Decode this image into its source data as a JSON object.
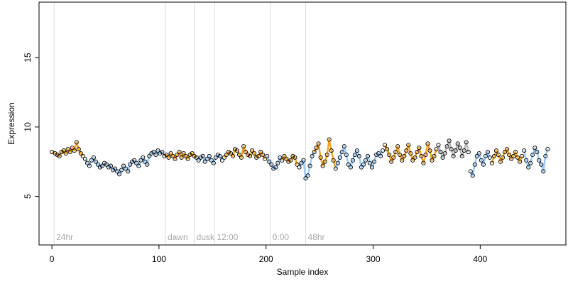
{
  "chart_data": {
    "type": "scatter",
    "xlabel": "Sample index",
    "ylabel": "Expression",
    "xlim": [
      -12,
      480
    ],
    "ylim": [
      1.5,
      19
    ],
    "xticks": [
      0,
      100,
      200,
      300,
      400
    ],
    "yticks": [
      5,
      10,
      15
    ],
    "colors": {
      "dark": "#000000",
      "orange": "#f5a623",
      "blue": "#9ecbf5",
      "gray": "#b8b8b8",
      "grid": "#dcdcdc"
    },
    "markers": [
      {
        "x": 2,
        "label": "24hr"
      },
      {
        "x": 106,
        "label": "dawn"
      },
      {
        "x": 133,
        "label": "dusk"
      },
      {
        "x": 152,
        "label": "12:00"
      },
      {
        "x": 204,
        "label": "0:00"
      },
      {
        "x": 237,
        "label": "48hr"
      }
    ],
    "segments": [
      {
        "x0": 0,
        "x1": 30,
        "color": "orange"
      },
      {
        "x0": 30,
        "x1": 105,
        "color": "blue"
      },
      {
        "x0": 105,
        "x1": 135,
        "color": "orange"
      },
      {
        "x0": 135,
        "x1": 160,
        "color": "blue"
      },
      {
        "x0": 160,
        "x1": 200,
        "color": "orange"
      },
      {
        "x0": 200,
        "x1": 215,
        "color": "blue"
      },
      {
        "x0": 215,
        "x1": 230,
        "color": "orange"
      },
      {
        "x0": 230,
        "x1": 245,
        "color": "blue"
      },
      {
        "x0": 245,
        "x1": 265,
        "color": "orange"
      },
      {
        "x0": 265,
        "x1": 310,
        "color": "blue"
      },
      {
        "x0": 310,
        "x1": 360,
        "color": "orange"
      },
      {
        "x0": 360,
        "x1": 390,
        "color": "gray"
      },
      {
        "x0": 390,
        "x1": 410,
        "color": "blue"
      },
      {
        "x0": 410,
        "x1": 440,
        "color": "orange"
      },
      {
        "x0": 440,
        "x1": 465,
        "color": "blue"
      }
    ],
    "points": [
      [
        0,
        8.2
      ],
      [
        3,
        8.1
      ],
      [
        5,
        8.0
      ],
      [
        7,
        7.9
      ],
      [
        9,
        8.2
      ],
      [
        11,
        8.3
      ],
      [
        13,
        8.1
      ],
      [
        15,
        8.4
      ],
      [
        17,
        8.2
      ],
      [
        19,
        8.5
      ],
      [
        21,
        8.3
      ],
      [
        23,
        8.9
      ],
      [
        25,
        8.4
      ],
      [
        27,
        8.1
      ],
      [
        29,
        7.9
      ],
      [
        31,
        7.7
      ],
      [
        33,
        7.4
      ],
      [
        35,
        7.2
      ],
      [
        37,
        7.6
      ],
      [
        39,
        7.8
      ],
      [
        41,
        7.5
      ],
      [
        43,
        7.3
      ],
      [
        45,
        7.1
      ],
      [
        47,
        7.2
      ],
      [
        49,
        7.4
      ],
      [
        51,
        7.3
      ],
      [
        53,
        7.1
      ],
      [
        55,
        7.2
      ],
      [
        57,
        6.9
      ],
      [
        59,
        7.0
      ],
      [
        61,
        6.8
      ],
      [
        63,
        6.6
      ],
      [
        65,
        6.9
      ],
      [
        67,
        7.2
      ],
      [
        69,
        7.0
      ],
      [
        71,
        6.8
      ],
      [
        73,
        7.3
      ],
      [
        75,
        7.5
      ],
      [
        77,
        7.6
      ],
      [
        79,
        7.4
      ],
      [
        81,
        7.2
      ],
      [
        83,
        7.6
      ],
      [
        85,
        7.8
      ],
      [
        87,
        7.5
      ],
      [
        89,
        7.3
      ],
      [
        91,
        7.9
      ],
      [
        93,
        8.1
      ],
      [
        95,
        8.2
      ],
      [
        97,
        8.0
      ],
      [
        99,
        8.3
      ],
      [
        101,
        8.1
      ],
      [
        103,
        8.2
      ],
      [
        105,
        7.9
      ],
      [
        107,
        8.0
      ],
      [
        109,
        7.8
      ],
      [
        111,
        8.1
      ],
      [
        113,
        7.9
      ],
      [
        115,
        7.7
      ],
      [
        117,
        8.0
      ],
      [
        119,
        8.2
      ],
      [
        121,
        7.8
      ],
      [
        123,
        8.1
      ],
      [
        125,
        7.9
      ],
      [
        127,
        7.7
      ],
      [
        129,
        8.0
      ],
      [
        131,
        8.1
      ],
      [
        133,
        7.9
      ],
      [
        135,
        7.8
      ],
      [
        137,
        7.6
      ],
      [
        139,
        7.8
      ],
      [
        141,
        7.9
      ],
      [
        143,
        7.5
      ],
      [
        145,
        7.7
      ],
      [
        147,
        7.9
      ],
      [
        149,
        7.6
      ],
      [
        151,
        7.4
      ],
      [
        153,
        7.8
      ],
      [
        155,
        8.0
      ],
      [
        157,
        7.9
      ],
      [
        159,
        7.6
      ],
      [
        161,
        7.8
      ],
      [
        163,
        8.0
      ],
      [
        165,
        8.2
      ],
      [
        167,
        8.1
      ],
      [
        169,
        7.9
      ],
      [
        171,
        8.4
      ],
      [
        173,
        8.3
      ],
      [
        175,
        8.0
      ],
      [
        177,
        7.8
      ],
      [
        179,
        8.6
      ],
      [
        181,
        8.2
      ],
      [
        183,
        8.0
      ],
      [
        185,
        7.9
      ],
      [
        187,
        8.3
      ],
      [
        189,
        8.1
      ],
      [
        191,
        7.8
      ],
      [
        193,
        7.9
      ],
      [
        195,
        8.2
      ],
      [
        197,
        8.0
      ],
      [
        199,
        7.7
      ],
      [
        201,
        7.9
      ],
      [
        203,
        7.5
      ],
      [
        205,
        7.3
      ],
      [
        207,
        7.0
      ],
      [
        209,
        7.1
      ],
      [
        211,
        7.4
      ],
      [
        213,
        7.8
      ],
      [
        215,
        7.6
      ],
      [
        217,
        7.9
      ],
      [
        219,
        7.7
      ],
      [
        221,
        7.5
      ],
      [
        223,
        7.6
      ],
      [
        225,
        7.9
      ],
      [
        227,
        7.8
      ],
      [
        229,
        7.3
      ],
      [
        231,
        7.1
      ],
      [
        233,
        7.4
      ],
      [
        235,
        7.6
      ],
      [
        237,
        6.3
      ],
      [
        239,
        6.5
      ],
      [
        241,
        7.2
      ],
      [
        243,
        7.9
      ],
      [
        245,
        8.2
      ],
      [
        247,
        8.5
      ],
      [
        249,
        8.8
      ],
      [
        251,
        7.8
      ],
      [
        253,
        7.2
      ],
      [
        255,
        7.5
      ],
      [
        257,
        8.0
      ],
      [
        259,
        9.1
      ],
      [
        261,
        8.3
      ],
      [
        263,
        7.6
      ],
      [
        265,
        7.0
      ],
      [
        267,
        7.4
      ],
      [
        269,
        7.8
      ],
      [
        271,
        8.2
      ],
      [
        273,
        8.6
      ],
      [
        275,
        8.0
      ],
      [
        277,
        7.3
      ],
      [
        279,
        7.1
      ],
      [
        281,
        7.6
      ],
      [
        283,
        8.0
      ],
      [
        285,
        8.3
      ],
      [
        287,
        7.9
      ],
      [
        289,
        7.1
      ],
      [
        291,
        7.3
      ],
      [
        293,
        7.6
      ],
      [
        295,
        7.9
      ],
      [
        297,
        7.4
      ],
      [
        299,
        7.1
      ],
      [
        301,
        7.5
      ],
      [
        303,
        8.0
      ],
      [
        305,
        8.1
      ],
      [
        307,
        7.9
      ],
      [
        309,
        8.3
      ],
      [
        311,
        8.7
      ],
      [
        313,
        8.4
      ],
      [
        315,
        8.0
      ],
      [
        317,
        7.5
      ],
      [
        319,
        7.8
      ],
      [
        321,
        8.2
      ],
      [
        323,
        8.6
      ],
      [
        325,
        8.0
      ],
      [
        327,
        7.6
      ],
      [
        329,
        7.9
      ],
      [
        331,
        8.3
      ],
      [
        333,
        8.7
      ],
      [
        335,
        8.1
      ],
      [
        337,
        7.6
      ],
      [
        339,
        7.8
      ],
      [
        341,
        8.2
      ],
      [
        343,
        8.5
      ],
      [
        345,
        7.9
      ],
      [
        347,
        7.4
      ],
      [
        349,
        8.0
      ],
      [
        351,
        8.8
      ],
      [
        353,
        8.3
      ],
      [
        355,
        7.6
      ],
      [
        357,
        7.9
      ],
      [
        359,
        8.4
      ],
      [
        361,
        8.7
      ],
      [
        363,
        8.2
      ],
      [
        365,
        7.8
      ],
      [
        367,
        8.1
      ],
      [
        369,
        8.6
      ],
      [
        371,
        9.0
      ],
      [
        373,
        8.4
      ],
      [
        375,
        7.9
      ],
      [
        377,
        8.3
      ],
      [
        379,
        8.8
      ],
      [
        381,
        8.5
      ],
      [
        383,
        7.9
      ],
      [
        385,
        8.3
      ],
      [
        387,
        8.9
      ],
      [
        389,
        8.2
      ],
      [
        391,
        6.8
      ],
      [
        393,
        6.5
      ],
      [
        395,
        7.3
      ],
      [
        397,
        7.9
      ],
      [
        399,
        8.1
      ],
      [
        401,
        7.6
      ],
      [
        403,
        7.3
      ],
      [
        405,
        7.9
      ],
      [
        407,
        8.2
      ],
      [
        409,
        7.8
      ],
      [
        411,
        7.4
      ],
      [
        413,
        7.9
      ],
      [
        415,
        8.3
      ],
      [
        417,
        8.0
      ],
      [
        419,
        7.5
      ],
      [
        421,
        7.8
      ],
      [
        423,
        8.2
      ],
      [
        425,
        8.4
      ],
      [
        427,
        8.0
      ],
      [
        429,
        7.7
      ],
      [
        431,
        7.9
      ],
      [
        433,
        8.2
      ],
      [
        435,
        7.8
      ],
      [
        437,
        7.5
      ],
      [
        439,
        7.9
      ],
      [
        441,
        8.3
      ],
      [
        443,
        7.6
      ],
      [
        445,
        7.1
      ],
      [
        447,
        7.4
      ],
      [
        449,
        8.0
      ],
      [
        451,
        8.5
      ],
      [
        453,
        8.2
      ],
      [
        455,
        7.6
      ],
      [
        457,
        7.3
      ],
      [
        459,
        6.8
      ],
      [
        461,
        7.9
      ],
      [
        463,
        8.4
      ]
    ]
  }
}
